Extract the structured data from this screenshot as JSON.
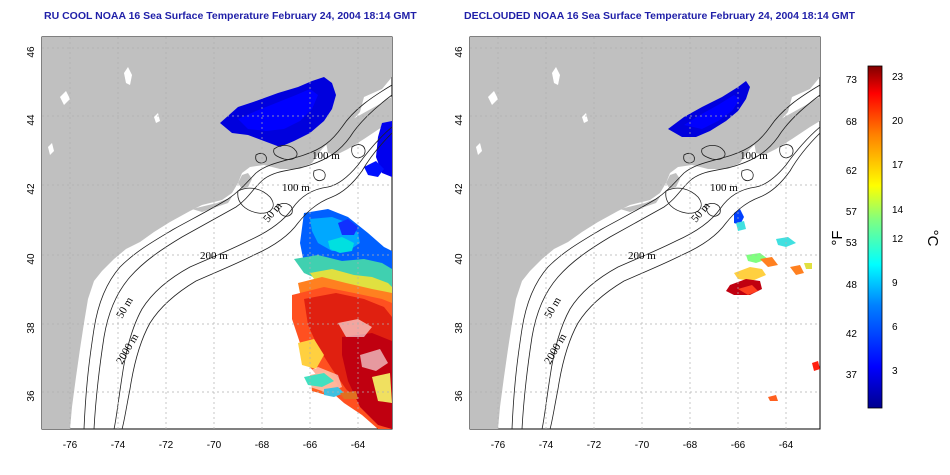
{
  "panels": {
    "left": {
      "title": "RU COOL NOAA 16 Sea Surface Temperature February 24, 2004 18:14 GMT"
    },
    "right": {
      "title": "DECLOUDED NOAA 16 Sea Surface Temperature February 24, 2004 18:14 GMT"
    }
  },
  "axes": {
    "lon_ticks": [
      "-76",
      "-74",
      "-72",
      "-70",
      "-68",
      "-66",
      "-64"
    ],
    "lat_ticks": [
      "46",
      "44",
      "42",
      "40",
      "38",
      "36"
    ]
  },
  "contour_labels": {
    "left": [
      "100 m",
      "100 m",
      "50 m",
      "200 m",
      "50 m",
      "2000 m"
    ],
    "right": [
      "100 m",
      "100 m",
      "50 m",
      "200 m",
      "50 m",
      "2000 m"
    ]
  },
  "colorbar": {
    "unit_f": "°F",
    "unit_c": "°C",
    "f_ticks": [
      "73",
      "68",
      "62",
      "57",
      "53",
      "48",
      "42",
      "37"
    ],
    "c_ticks": [
      "23",
      "20",
      "17",
      "14",
      "12",
      "9",
      "6",
      "3"
    ],
    "colors": [
      "#00008f",
      "#0000ff",
      "#0080ff",
      "#00ffff",
      "#80ff80",
      "#ffff00",
      "#ff8000",
      "#ff0000",
      "#800000"
    ]
  },
  "colors": {
    "land": "#c0c0c0",
    "title": "#1f1fa8",
    "grid": "#b0b0b0"
  }
}
